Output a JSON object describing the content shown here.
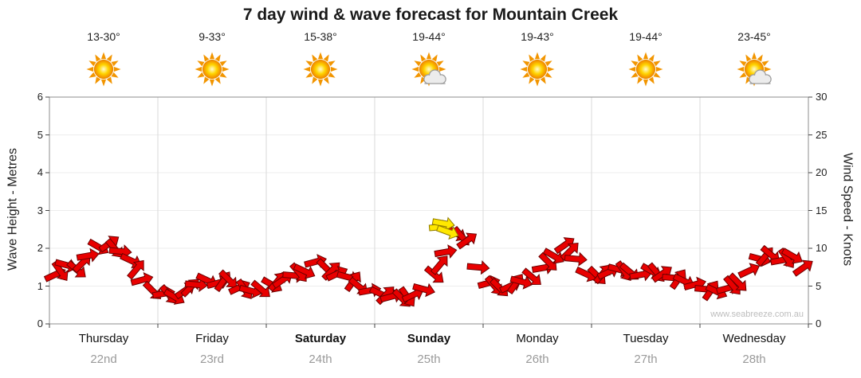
{
  "watermark": "www.seabreeze.com.au",
  "days": [
    {
      "name": "Thursday",
      "date": "22nd",
      "temp": "13-30°",
      "icon": "sun",
      "bold": false
    },
    {
      "name": "Friday",
      "date": "23rd",
      "temp": "9-33°",
      "icon": "sun",
      "bold": false
    },
    {
      "name": "Saturday",
      "date": "24th",
      "temp": "15-38°",
      "icon": "sun",
      "bold": true
    },
    {
      "name": "Sunday",
      "date": "25th",
      "temp": "19-44°",
      "icon": "sun-cloud",
      "bold": true
    },
    {
      "name": "Monday",
      "date": "26th",
      "temp": "19-43°",
      "icon": "sun",
      "bold": false
    },
    {
      "name": "Tuesday",
      "date": "27th",
      "temp": "19-44°",
      "icon": "sun",
      "bold": false
    },
    {
      "name": "Wednesday",
      "date": "28th",
      "temp": "23-45°",
      "icon": "sun-cloud",
      "bold": false
    }
  ],
  "colors": {
    "arrow_red": "#e80000",
    "arrow_red_outline": "#6b0000",
    "arrow_yellow": "#ffe800",
    "arrow_yellow_outline": "#8f7a00",
    "grid_h": "#ededed",
    "grid_v": "#d9d9d9",
    "plot_border": "#8c8c8c",
    "tick": "#444444",
    "sun_ray": "#f29500"
  },
  "chart_data": {
    "type": "line",
    "title": "7 day wind & wave forecast for Mountain Creek",
    "left_axis": {
      "label": "Wave Height - Metres",
      "min": 0,
      "max": 6,
      "ticks": [
        0,
        1,
        2,
        3,
        4,
        5,
        6
      ]
    },
    "right_axis": {
      "label": "Wind Speed - Knots",
      "min": 0,
      "max": 30,
      "ticks": [
        0,
        5,
        10,
        15,
        20,
        25,
        30
      ]
    },
    "x_axis": {
      "unit": "days",
      "range": [
        0,
        7
      ],
      "boundaries": [
        0,
        1,
        2,
        3,
        4,
        5,
        6,
        7
      ]
    },
    "grid": true,
    "legend": "none",
    "point_format": [
      "x_day_position",
      "wind_speed_knots",
      "direction_deg"
    ],
    "series": [
      {
        "name": "Wind speed & direction",
        "marker": "arrow",
        "color": "#e80000",
        "points": [
          [
            0.05,
            6.5,
            -25
          ],
          [
            0.1,
            7.0,
            55
          ],
          [
            0.15,
            7.8,
            15
          ],
          [
            0.25,
            7.2,
            40
          ],
          [
            0.3,
            8.0,
            -45
          ],
          [
            0.35,
            9.0,
            -10
          ],
          [
            0.45,
            10.2,
            30
          ],
          [
            0.55,
            10.6,
            -35
          ],
          [
            0.6,
            10.0,
            50
          ],
          [
            0.65,
            9.6,
            5
          ],
          [
            0.75,
            8.4,
            25
          ],
          [
            0.8,
            7.2,
            -50
          ],
          [
            0.85,
            5.8,
            -15
          ],
          [
            0.95,
            4.4,
            45
          ],
          [
            1.05,
            4.0,
            -10
          ],
          [
            1.1,
            3.9,
            50
          ],
          [
            1.15,
            3.6,
            30
          ],
          [
            1.25,
            4.4,
            -35
          ],
          [
            1.3,
            4.8,
            -45
          ],
          [
            1.35,
            5.2,
            5
          ],
          [
            1.45,
            5.8,
            25
          ],
          [
            1.55,
            5.4,
            -15
          ],
          [
            1.6,
            5.6,
            -55
          ],
          [
            1.65,
            5.9,
            45
          ],
          [
            1.75,
            4.8,
            -25
          ],
          [
            1.8,
            4.6,
            55
          ],
          [
            1.85,
            4.4,
            15
          ],
          [
            1.95,
            4.6,
            40
          ],
          [
            2.05,
            5.2,
            30
          ],
          [
            2.1,
            5.6,
            -50
          ],
          [
            2.15,
            5.8,
            -35
          ],
          [
            2.25,
            6.4,
            5
          ],
          [
            2.3,
            6.8,
            50
          ],
          [
            2.35,
            7.0,
            25
          ],
          [
            2.45,
            8.2,
            -15
          ],
          [
            2.55,
            7.4,
            45
          ],
          [
            2.6,
            7.0,
            -45
          ],
          [
            2.65,
            6.6,
            -25
          ],
          [
            2.75,
            6.2,
            15
          ],
          [
            2.8,
            5.6,
            -55
          ],
          [
            2.85,
            5.0,
            40
          ],
          [
            2.95,
            4.4,
            -10
          ],
          [
            3.05,
            4.0,
            25
          ],
          [
            3.1,
            3.8,
            -45
          ],
          [
            3.15,
            3.6,
            -15
          ],
          [
            3.25,
            3.4,
            45
          ],
          [
            3.3,
            3.6,
            55
          ],
          [
            3.35,
            3.8,
            -25
          ],
          [
            3.45,
            4.6,
            15
          ],
          [
            3.55,
            6.5,
            40
          ],
          [
            3.6,
            7.8,
            -50
          ],
          [
            3.65,
            9.5,
            -10
          ],
          [
            3.75,
            12.0,
            30
          ],
          [
            3.8,
            11.6,
            50
          ],
          [
            3.85,
            11.0,
            -35
          ],
          [
            3.95,
            7.5,
            5
          ],
          [
            4.05,
            5.4,
            -15
          ],
          [
            4.1,
            5.1,
            50
          ],
          [
            4.15,
            4.8,
            45
          ],
          [
            4.25,
            5.0,
            -25
          ],
          [
            4.3,
            5.3,
            -55
          ],
          [
            4.35,
            5.6,
            15
          ],
          [
            4.45,
            6.2,
            40
          ],
          [
            4.55,
            7.4,
            -10
          ],
          [
            4.6,
            8.2,
            45
          ],
          [
            4.65,
            9.0,
            30
          ],
          [
            4.75,
            10.4,
            -35
          ],
          [
            4.8,
            9.6,
            -45
          ],
          [
            4.85,
            8.6,
            5
          ],
          [
            4.95,
            6.6,
            25
          ],
          [
            5.05,
            6.4,
            45
          ],
          [
            5.1,
            6.6,
            -50
          ],
          [
            5.15,
            6.8,
            -25
          ],
          [
            5.25,
            7.2,
            15
          ],
          [
            5.3,
            7.0,
            55
          ],
          [
            5.35,
            6.9,
            40
          ],
          [
            5.45,
            6.5,
            -10
          ],
          [
            5.55,
            7.0,
            30
          ],
          [
            5.6,
            6.8,
            50
          ],
          [
            5.65,
            6.6,
            -35
          ],
          [
            5.75,
            6.1,
            5
          ],
          [
            5.8,
            5.9,
            -55
          ],
          [
            5.85,
            5.7,
            25
          ],
          [
            5.95,
            5.2,
            -15
          ],
          [
            6.05,
            4.6,
            5
          ],
          [
            6.1,
            4.4,
            -55
          ],
          [
            6.15,
            4.3,
            25
          ],
          [
            6.25,
            4.7,
            -15
          ],
          [
            6.3,
            5.1,
            50
          ],
          [
            6.35,
            5.5,
            45
          ],
          [
            6.45,
            7.0,
            -25
          ],
          [
            6.55,
            8.6,
            15
          ],
          [
            6.6,
            8.9,
            -50
          ],
          [
            6.65,
            9.2,
            40
          ],
          [
            6.75,
            8.4,
            -10
          ],
          [
            6.8,
            8.7,
            55
          ],
          [
            6.85,
            9.0,
            30
          ],
          [
            6.95,
            7.4,
            -35
          ]
        ]
      },
      {
        "name": "Strong wind highlight",
        "marker": "arrow",
        "color": "#ffe800",
        "points": [
          [
            3.6,
            12.8,
            -5
          ],
          [
            3.63,
            13.3,
            10
          ],
          [
            3.67,
            12.2,
            20
          ]
        ]
      }
    ]
  }
}
